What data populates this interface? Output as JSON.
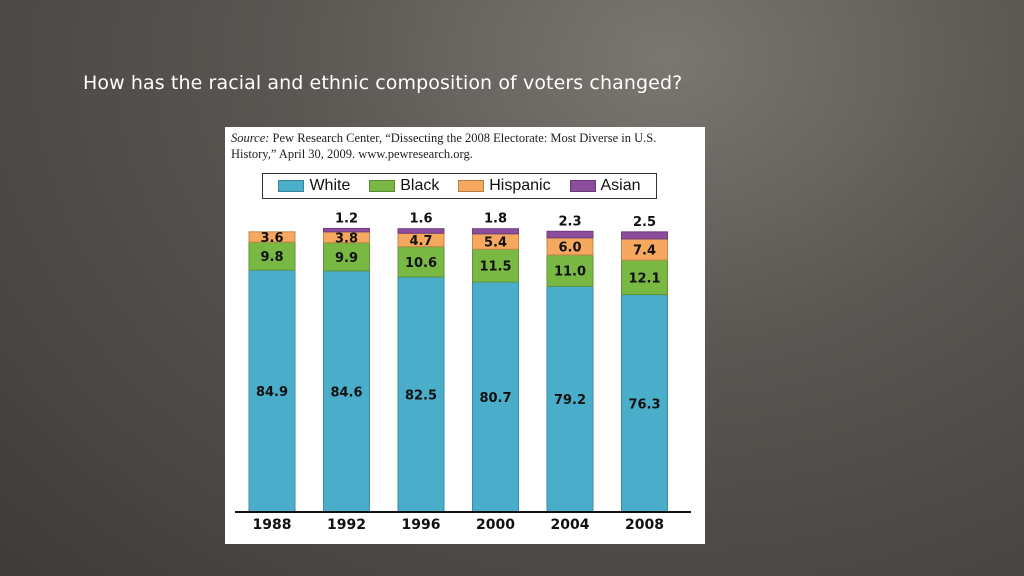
{
  "slide": {
    "title": "How has the racial and ethnic composition of voters changed?"
  },
  "source": {
    "label": "Source:",
    "text": "Pew Research Center, “Dissecting the 2008 Electorate: Most Diverse in U.S. History,” April 30, 2009. www.pewresearch.org."
  },
  "colors": {
    "White": "#4aaecb",
    "Black": "#78b843",
    "Hispanic": "#f5a85e",
    "Asian": "#8b4d9c"
  },
  "chart_data": {
    "type": "bar",
    "stacked": true,
    "categories": [
      "1988",
      "1992",
      "1996",
      "2000",
      "2004",
      "2008"
    ],
    "series": [
      {
        "name": "White",
        "values": [
          84.9,
          84.6,
          82.5,
          80.7,
          79.2,
          76.3
        ],
        "labels": [
          "84.9",
          "84.6",
          "82.5",
          "80.7",
          "79.2",
          "76.3"
        ]
      },
      {
        "name": "Black",
        "values": [
          9.8,
          9.9,
          10.6,
          11.5,
          11.0,
          12.1
        ],
        "labels": [
          "9.8",
          "9.9",
          "10.6",
          "11.5",
          "11.0",
          "12.1"
        ]
      },
      {
        "name": "Hispanic",
        "values": [
          3.6,
          3.8,
          4.7,
          5.4,
          6.0,
          7.4
        ],
        "labels": [
          "3.6",
          "3.8",
          "4.7",
          "5.4",
          "6.0",
          "7.4"
        ]
      },
      {
        "name": "Asian",
        "values": [
          null,
          1.2,
          1.6,
          1.8,
          2.3,
          2.5
        ],
        "labels": [
          "",
          "1.2",
          "1.6",
          "1.8",
          "2.3",
          "2.5"
        ]
      }
    ],
    "ylim": [
      0,
      100
    ],
    "legend_position": "top",
    "grid": false
  }
}
